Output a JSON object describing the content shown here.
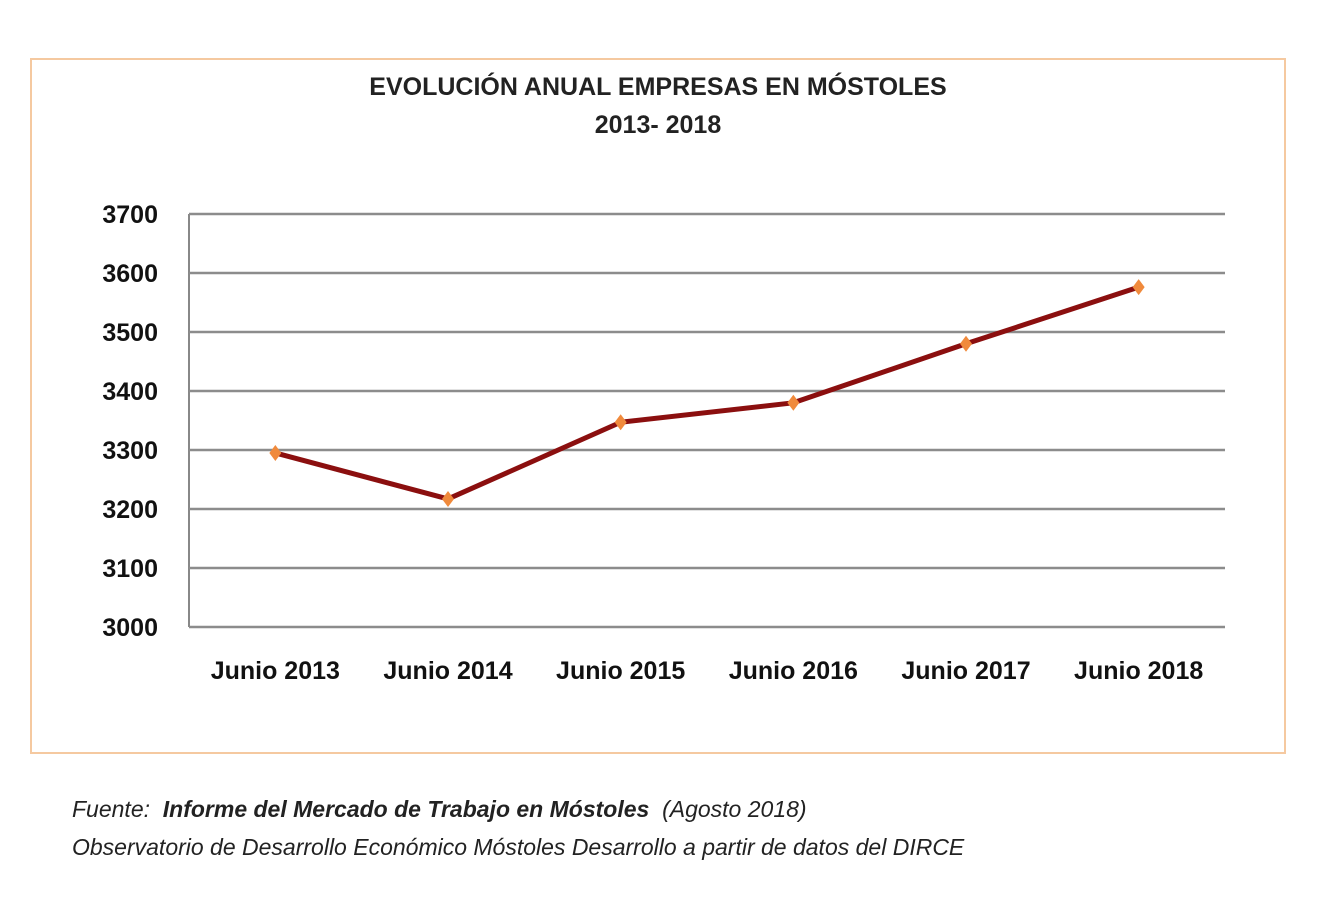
{
  "chart_data": {
    "type": "line",
    "title": "EVOLUCIÓN ANUAL EMPRESAS EN MÓSTOLES",
    "subtitle": "2013- 2018",
    "categories": [
      "Junio 2013",
      "Junio 2014",
      "Junio 2015",
      "Junio 2016",
      "Junio 2017",
      "Junio 2018"
    ],
    "series": [
      {
        "values": [
          3295,
          3217,
          3347,
          3380,
          3480,
          3576
        ]
      }
    ],
    "ylim": [
      3000,
      3700
    ],
    "yticks": [
      "3000",
      "3100",
      "3200",
      "3300",
      "3400",
      "3500",
      "3600",
      "3700"
    ],
    "grid": true,
    "line_color": "#8b0f0f",
    "marker_color": "#f08a3c",
    "marker": "diamond"
  },
  "source": {
    "prefix": "Fuente:",
    "report": "Informe del Mercado de Trabajo en Móstoles",
    "date": "(Agosto 2018)",
    "line2": "Observatorio de Desarrollo Económico Móstoles Desarrollo a partir de datos del DIRCE"
  }
}
